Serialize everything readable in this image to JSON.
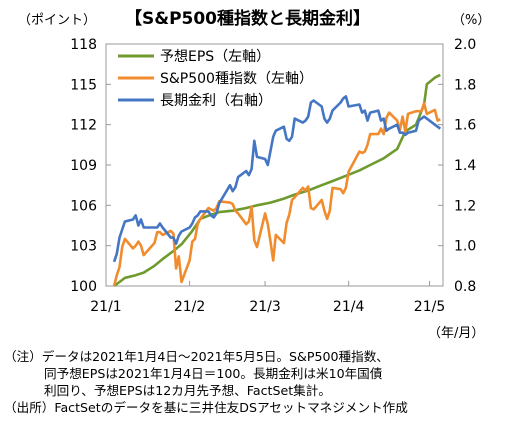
{
  "chart_data": {
    "type": "line",
    "title": "【S&P500種指数と長期金利】",
    "left_axis_unit": "（ポイント）",
    "right_axis_unit": "（%）",
    "x_axis_unit": "（年/月）",
    "ylim_left": [
      100,
      118
    ],
    "ylim_right": [
      0.8,
      2.0
    ],
    "y_ticks_left": [
      "118",
      "115",
      "112",
      "109",
      "106",
      "103",
      "100"
    ],
    "y_ticks_right": [
      "2.0",
      "1.8",
      "1.6",
      "1.4",
      "1.2",
      "1.0",
      "0.8"
    ],
    "x_ticks": [
      "21/1",
      "21/2",
      "21/3",
      "21/4",
      "21/5"
    ],
    "x_tick_dates": [
      "2021-01-01",
      "2021-02-01",
      "2021-03-01",
      "2021-04-01",
      "2021-05-01"
    ],
    "legend_placement": "top-left",
    "series": [
      {
        "name": "予想EPS（左軸）",
        "axis": "left",
        "color": "#6f9a2e",
        "points": [
          [
            "2021-01-04",
            100.0
          ],
          [
            "2021-01-06",
            100.3
          ],
          [
            "2021-01-08",
            100.6
          ],
          [
            "2021-01-12",
            100.8
          ],
          [
            "2021-01-15",
            101.0
          ],
          [
            "2021-01-19",
            101.5
          ],
          [
            "2021-01-22",
            102.0
          ],
          [
            "2021-01-26",
            102.6
          ],
          [
            "2021-01-29",
            103.1
          ],
          [
            "2021-02-02",
            104.1
          ],
          [
            "2021-02-05",
            105.0
          ],
          [
            "2021-02-09",
            105.3
          ],
          [
            "2021-02-12",
            105.5
          ],
          [
            "2021-02-17",
            105.6
          ],
          [
            "2021-02-22",
            105.8
          ],
          [
            "2021-02-26",
            106.0
          ],
          [
            "2021-03-03",
            106.2
          ],
          [
            "2021-03-08",
            106.5
          ],
          [
            "2021-03-12",
            106.8
          ],
          [
            "2021-03-17",
            107.1
          ],
          [
            "2021-03-22",
            107.5
          ],
          [
            "2021-03-26",
            107.8
          ],
          [
            "2021-03-31",
            108.2
          ],
          [
            "2021-04-05",
            108.6
          ],
          [
            "2021-04-09",
            109.0
          ],
          [
            "2021-04-14",
            109.5
          ],
          [
            "2021-04-19",
            110.2
          ],
          [
            "2021-04-22",
            111.5
          ],
          [
            "2021-04-26",
            112.0
          ],
          [
            "2021-04-29",
            113.5
          ],
          [
            "2021-04-30",
            115.0
          ],
          [
            "2021-05-03",
            115.5
          ],
          [
            "2021-05-05",
            115.7
          ]
        ]
      },
      {
        "name": "S&P500種指数（左軸）",
        "axis": "left",
        "color": "#f08c2e",
        "points": [
          [
            "2021-01-04",
            100.0
          ],
          [
            "2021-01-05",
            100.8
          ],
          [
            "2021-01-06",
            101.4
          ],
          [
            "2021-01-07",
            102.9
          ],
          [
            "2021-01-08",
            103.5
          ],
          [
            "2021-01-11",
            102.8
          ],
          [
            "2021-01-12",
            103.0
          ],
          [
            "2021-01-13",
            103.3
          ],
          [
            "2021-01-14",
            103.0
          ],
          [
            "2021-01-15",
            102.3
          ],
          [
            "2021-01-19",
            103.2
          ],
          [
            "2021-01-20",
            104.0
          ],
          [
            "2021-01-21",
            104.0
          ],
          [
            "2021-01-22",
            103.8
          ],
          [
            "2021-01-25",
            104.1
          ],
          [
            "2021-01-26",
            103.9
          ],
          [
            "2021-01-27",
            101.3
          ],
          [
            "2021-01-28",
            102.2
          ],
          [
            "2021-01-29",
            100.3
          ],
          [
            "2021-02-01",
            101.9
          ],
          [
            "2021-02-02",
            103.3
          ],
          [
            "2021-02-03",
            103.5
          ],
          [
            "2021-02-04",
            104.6
          ],
          [
            "2021-02-05",
            105.0
          ],
          [
            "2021-02-08",
            105.8
          ],
          [
            "2021-02-09",
            105.7
          ],
          [
            "2021-02-10",
            105.6
          ],
          [
            "2021-02-11",
            105.8
          ],
          [
            "2021-02-12",
            106.3
          ],
          [
            "2021-02-16",
            106.2
          ],
          [
            "2021-02-17",
            106.1
          ],
          [
            "2021-02-18",
            105.6
          ],
          [
            "2021-02-19",
            105.4
          ],
          [
            "2021-02-22",
            104.6
          ],
          [
            "2021-02-23",
            104.8
          ],
          [
            "2021-02-24",
            105.9
          ],
          [
            "2021-02-25",
            103.4
          ],
          [
            "2021-02-26",
            102.9
          ],
          [
            "2021-03-01",
            105.4
          ],
          [
            "2021-03-02",
            104.6
          ],
          [
            "2021-03-03",
            103.3
          ],
          [
            "2021-03-04",
            101.9
          ],
          [
            "2021-03-05",
            103.8
          ],
          [
            "2021-03-08",
            103.2
          ],
          [
            "2021-03-09",
            104.7
          ],
          [
            "2021-03-10",
            105.3
          ],
          [
            "2021-03-11",
            106.4
          ],
          [
            "2021-03-12",
            106.6
          ],
          [
            "2021-03-15",
            107.3
          ],
          [
            "2021-03-16",
            107.1
          ],
          [
            "2021-03-17",
            107.4
          ],
          [
            "2021-03-18",
            105.8
          ],
          [
            "2021-03-19",
            105.7
          ],
          [
            "2021-03-22",
            106.4
          ],
          [
            "2021-03-23",
            105.6
          ],
          [
            "2021-03-24",
            105.0
          ],
          [
            "2021-03-25",
            105.6
          ],
          [
            "2021-03-26",
            107.3
          ],
          [
            "2021-03-29",
            107.2
          ],
          [
            "2021-03-30",
            106.9
          ],
          [
            "2021-03-31",
            107.3
          ],
          [
            "2021-04-01",
            108.5
          ],
          [
            "2021-04-05",
            110.0
          ],
          [
            "2021-04-06",
            109.9
          ],
          [
            "2021-04-07",
            110.0
          ],
          [
            "2021-04-08",
            110.5
          ],
          [
            "2021-04-09",
            111.3
          ],
          [
            "2021-04-12",
            111.3
          ],
          [
            "2021-04-13",
            111.7
          ],
          [
            "2021-04-14",
            111.3
          ],
          [
            "2021-04-15",
            112.5
          ],
          [
            "2021-04-16",
            112.9
          ],
          [
            "2021-04-19",
            112.3
          ],
          [
            "2021-04-20",
            111.6
          ],
          [
            "2021-04-21",
            112.6
          ],
          [
            "2021-04-22",
            111.5
          ],
          [
            "2021-04-23",
            112.8
          ],
          [
            "2021-04-26",
            113.0
          ],
          [
            "2021-04-27",
            113.0
          ],
          [
            "2021-04-28",
            113.0
          ],
          [
            "2021-04-29",
            113.6
          ],
          [
            "2021-04-30",
            112.8
          ],
          [
            "2021-05-03",
            113.1
          ],
          [
            "2021-05-04",
            112.3
          ],
          [
            "2021-05-05",
            112.4
          ]
        ]
      },
      {
        "name": "長期金利（右軸）",
        "axis": "right",
        "color": "#4576c4",
        "points": [
          [
            "2021-01-04",
            0.92
          ],
          [
            "2021-01-05",
            0.96
          ],
          [
            "2021-01-06",
            1.04
          ],
          [
            "2021-01-07",
            1.08
          ],
          [
            "2021-01-08",
            1.12
          ],
          [
            "2021-01-11",
            1.13
          ],
          [
            "2021-01-12",
            1.15
          ],
          [
            "2021-01-13",
            1.1
          ],
          [
            "2021-01-14",
            1.13
          ],
          [
            "2021-01-15",
            1.09
          ],
          [
            "2021-01-19",
            1.09
          ],
          [
            "2021-01-20",
            1.09
          ],
          [
            "2021-01-21",
            1.11
          ],
          [
            "2021-01-22",
            1.09
          ],
          [
            "2021-01-25",
            1.04
          ],
          [
            "2021-01-26",
            1.04
          ],
          [
            "2021-01-27",
            1.01
          ],
          [
            "2021-01-28",
            1.05
          ],
          [
            "2021-01-29",
            1.07
          ],
          [
            "2021-02-01",
            1.09
          ],
          [
            "2021-02-02",
            1.11
          ],
          [
            "2021-02-03",
            1.14
          ],
          [
            "2021-02-04",
            1.15
          ],
          [
            "2021-02-05",
            1.17
          ],
          [
            "2021-02-08",
            1.17
          ],
          [
            "2021-02-09",
            1.15
          ],
          [
            "2021-02-10",
            1.14
          ],
          [
            "2021-02-11",
            1.16
          ],
          [
            "2021-02-12",
            1.21
          ],
          [
            "2021-02-16",
            1.3
          ],
          [
            "2021-02-17",
            1.27
          ],
          [
            "2021-02-18",
            1.29
          ],
          [
            "2021-02-19",
            1.34
          ],
          [
            "2021-02-22",
            1.37
          ],
          [
            "2021-02-23",
            1.35
          ],
          [
            "2021-02-24",
            1.38
          ],
          [
            "2021-02-25",
            1.52
          ],
          [
            "2021-02-26",
            1.44
          ],
          [
            "2021-03-01",
            1.43
          ],
          [
            "2021-03-02",
            1.4
          ],
          [
            "2021-03-03",
            1.47
          ],
          [
            "2021-03-04",
            1.54
          ],
          [
            "2021-03-05",
            1.57
          ],
          [
            "2021-03-08",
            1.59
          ],
          [
            "2021-03-09",
            1.53
          ],
          [
            "2021-03-10",
            1.52
          ],
          [
            "2021-03-11",
            1.54
          ],
          [
            "2021-03-12",
            1.63
          ],
          [
            "2021-03-15",
            1.61
          ],
          [
            "2021-03-16",
            1.62
          ],
          [
            "2021-03-17",
            1.64
          ],
          [
            "2021-03-18",
            1.71
          ],
          [
            "2021-03-19",
            1.72
          ],
          [
            "2021-03-22",
            1.69
          ],
          [
            "2021-03-23",
            1.63
          ],
          [
            "2021-03-24",
            1.61
          ],
          [
            "2021-03-25",
            1.63
          ],
          [
            "2021-03-26",
            1.67
          ],
          [
            "2021-03-29",
            1.71
          ],
          [
            "2021-03-30",
            1.73
          ],
          [
            "2021-03-31",
            1.74
          ],
          [
            "2021-04-01",
            1.69
          ],
          [
            "2021-04-05",
            1.7
          ],
          [
            "2021-04-06",
            1.66
          ],
          [
            "2021-04-07",
            1.67
          ],
          [
            "2021-04-08",
            1.62
          ],
          [
            "2021-04-09",
            1.66
          ],
          [
            "2021-04-12",
            1.67
          ],
          [
            "2021-04-13",
            1.62
          ],
          [
            "2021-04-14",
            1.63
          ],
          [
            "2021-04-15",
            1.57
          ],
          [
            "2021-04-16",
            1.58
          ],
          [
            "2021-04-19",
            1.6
          ],
          [
            "2021-04-20",
            1.56
          ],
          [
            "2021-04-21",
            1.56
          ],
          [
            "2021-04-22",
            1.55
          ],
          [
            "2021-04-23",
            1.56
          ],
          [
            "2021-04-26",
            1.57
          ],
          [
            "2021-04-27",
            1.62
          ],
          [
            "2021-04-28",
            1.63
          ],
          [
            "2021-04-29",
            1.64
          ],
          [
            "2021-04-30",
            1.63
          ],
          [
            "2021-05-03",
            1.6
          ],
          [
            "2021-05-04",
            1.59
          ],
          [
            "2021-05-05",
            1.58
          ]
        ]
      }
    ]
  },
  "notes": {
    "line1": "（注）データは2021年1月4日～2021年5月5日。S&P500種指数、",
    "line2": "同予想EPSは2021年1月4日＝100。長期金利は米10年国債",
    "line3": "利回り、予想EPSは12カ月先予想、FactSet集計。",
    "line4": "（出所）FactSetのデータを基に三井住友DSアセットマネジメント作成"
  }
}
